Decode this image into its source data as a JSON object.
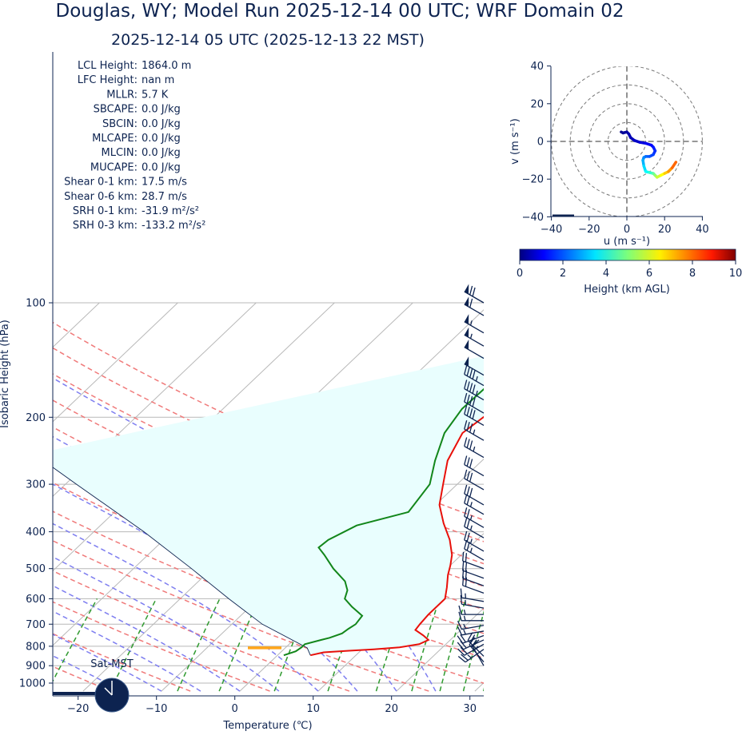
{
  "title": "Douglas, WY; Model Run 2025-12-14 00 UTC; WRF Domain 02",
  "subtitle": "2025-12-14 05 UTC  (2025-12-13 22 MST)",
  "colors": {
    "text": "#0d2350",
    "temperature": "#e8100a",
    "dewpoint": "#12861a",
    "parcel": "#0d2350",
    "dry_adiabat": "#f07a7a",
    "moist_adiabat": "#7e7ef0",
    "mixing_ratio": "#2f9a2f",
    "isotherm": "#b8b8b8",
    "cape_fill": "#e9fefe",
    "lcl_marker": "#ffa51a"
  },
  "stats": [
    {
      "label": "LCL Height:",
      "value": "1864.0 m"
    },
    {
      "label": "LFC Height:",
      "value": "nan m"
    },
    {
      "label": "MLLR:",
      "value": "5.7 K"
    },
    {
      "label": "SBCAPE:",
      "value": "0.0 J/kg"
    },
    {
      "label": "SBCIN:",
      "value": "0.0 J/kg"
    },
    {
      "label": "MLCAPE:",
      "value": "0.0 J/kg"
    },
    {
      "label": "MLCIN:",
      "value": "0.0 J/kg"
    },
    {
      "label": "MUCAPE:",
      "value": "0.0 J/kg"
    },
    {
      "label": "Shear 0-1 km:",
      "value": "17.5 m/s"
    },
    {
      "label": "Shear 0-6 km:",
      "value": "28.7 m/s"
    },
    {
      "label": "SRH 0-1 km:",
      "value": "-31.9 m²/s²"
    },
    {
      "label": "SRH 0-3 km:",
      "value": "-133.2 m²/s²"
    }
  ],
  "clock_label": "Sat-MST",
  "chart_data": [
    {
      "type": "line",
      "name": "skew-t",
      "xlabel": "Temperature (℃)",
      "ylabel": "Isobaric Height (hPa)",
      "xlim": [
        -25,
        30
      ],
      "ylim": [
        1050,
        100
      ],
      "y_scale": "log",
      "x_ticks": [
        "−20",
        "−10",
        "0",
        "10",
        "20",
        "30"
      ],
      "y_ticks": [
        "100",
        "200",
        "300",
        "400",
        "500",
        "600",
        "700",
        "800",
        "900",
        "1000"
      ],
      "series": [
        {
          "id": "temperature",
          "pressure": [
            845,
            830,
            822,
            815,
            805,
            790,
            770,
            750,
            725,
            700,
            660,
            600,
            560,
            520,
            490,
            460,
            420,
            380,
            340,
            300,
            260,
            220,
            195,
            170,
            150,
            130,
            115,
            100
          ],
          "temp": [
            4.2,
            5.5,
            8.5,
            11.5,
            14.5,
            16.6,
            17.2,
            16,
            14.2,
            14,
            13.8,
            13.8,
            12.5,
            11,
            10,
            8.8,
            6.5,
            3.5,
            0.5,
            -1.8,
            -4.4,
            -6.2,
            -5.5,
            -2.5,
            0.4,
            3.5,
            6.2,
            10.2
          ]
        },
        {
          "id": "dewpoint",
          "pressure": [
            845,
            825,
            805,
            790,
            770,
            760,
            740,
            720,
            700,
            665,
            630,
            600,
            570,
            540,
            500,
            460,
            440,
            420,
            385,
            355,
            300,
            260,
            220,
            190,
            160,
            140,
            120,
            100
          ],
          "temp": [
            0.8,
            1.8,
            2.0,
            2.0,
            3.5,
            4.3,
            5.3,
            5.5,
            5.8,
            5.5,
            3.0,
            1.0,
            0.2,
            -1.3,
            -4.5,
            -7.5,
            -9.2,
            -9.0,
            -7.3,
            -2.5,
            -3.5,
            -6.0,
            -8.5,
            -9.5,
            -9.3,
            -8.2,
            -7.8,
            -4.0
          ]
        },
        {
          "id": "parcel",
          "pressure": [
            845,
            808,
            700,
            600,
            500,
            400,
            300,
            250
          ],
          "temp": [
            4.2,
            2.8,
            -6.1,
            -13.8,
            -22.6,
            -33.6,
            -48.6,
            -58.0
          ]
        }
      ],
      "lcl": {
        "pressure": 808,
        "temp": 2.8
      },
      "isotherms_c": [
        -100,
        -90,
        -80,
        -70,
        -60,
        -50,
        -40,
        -30,
        -20,
        -10,
        0,
        10,
        20,
        30,
        40
      ],
      "dry_adiabats_c": [
        -30,
        -20,
        -10,
        0,
        10,
        20,
        30,
        40,
        50,
        60,
        70,
        80,
        90,
        100
      ],
      "moist_adiabats_c": [
        -15,
        -10,
        -5,
        0,
        5,
        10,
        15,
        20,
        25
      ],
      "mixing_ratios_gkg": [
        0.5,
        1,
        2,
        3,
        5,
        8,
        12,
        16,
        20,
        24,
        28
      ]
    },
    {
      "type": "line",
      "name": "hodograph",
      "xlabel": "u (m s⁻¹)",
      "ylabel": "v (m s⁻¹)",
      "xlim": [
        -40,
        40
      ],
      "ylim": [
        -40,
        40
      ],
      "x_ticks": [
        "−40",
        "−20",
        "0",
        "20",
        "40"
      ],
      "y_ticks": [
        "40",
        "20",
        "0",
        "−20",
        "−40"
      ],
      "rings": [
        10,
        20,
        30,
        40
      ],
      "u": [
        -3,
        -2,
        0,
        1,
        2,
        4,
        7,
        10,
        13,
        14,
        15,
        14,
        12,
        10,
        9,
        8.5,
        9,
        10,
        12,
        14,
        15,
        16,
        18,
        20,
        22,
        24,
        26
      ],
      "v": [
        5,
        4.5,
        5,
        4,
        2,
        0.5,
        -0.5,
        -1,
        -2,
        -3,
        -5,
        -7,
        -8,
        -8,
        -8.5,
        -10,
        -13,
        -16,
        -16.5,
        -17,
        -18,
        -19,
        -18,
        -17,
        -16,
        -14,
        -11
      ],
      "height_km": [
        0.1,
        0.2,
        0.3,
        0.4,
        0.5,
        0.6,
        0.8,
        1.0,
        1.2,
        1.4,
        1.6,
        1.8,
        2.0,
        2.2,
        2.4,
        2.8,
        3.2,
        3.6,
        4.0,
        4.5,
        5.0,
        5.5,
        6.0,
        6.5,
        7.0,
        7.5,
        8.0
      ],
      "colorbar": {
        "label": "Height (km AGL)",
        "range": [
          0,
          10
        ],
        "ticks": [
          "0",
          "2",
          "4",
          "6",
          "8",
          "10"
        ],
        "colormap": "jet"
      }
    },
    {
      "type": "barbs",
      "name": "wind-profile",
      "pressure": [
        100,
        108,
        120,
        130,
        140,
        155,
        165,
        180,
        195,
        210,
        230,
        255,
        285,
        310,
        340,
        360,
        390,
        415,
        450,
        475,
        500,
        530,
        555,
        580,
        610,
        635,
        660,
        685,
        705,
        730,
        750,
        770,
        790,
        815,
        850,
        880,
        900
      ],
      "speed_kt": [
        70,
        60,
        55,
        55,
        50,
        50,
        45,
        45,
        40,
        40,
        35,
        35,
        30,
        30,
        30,
        25,
        25,
        25,
        25,
        25,
        20,
        20,
        20,
        20,
        15,
        15,
        15,
        15,
        15,
        15,
        20,
        20,
        20,
        25,
        25,
        20,
        15
      ],
      "direction_deg": [
        300,
        300,
        300,
        300,
        300,
        300,
        300,
        300,
        300,
        300,
        300,
        300,
        300,
        300,
        300,
        300,
        300,
        300,
        300,
        300,
        290,
        290,
        290,
        290,
        280,
        280,
        270,
        270,
        260,
        260,
        250,
        245,
        240,
        235,
        315,
        320,
        330
      ]
    }
  ]
}
